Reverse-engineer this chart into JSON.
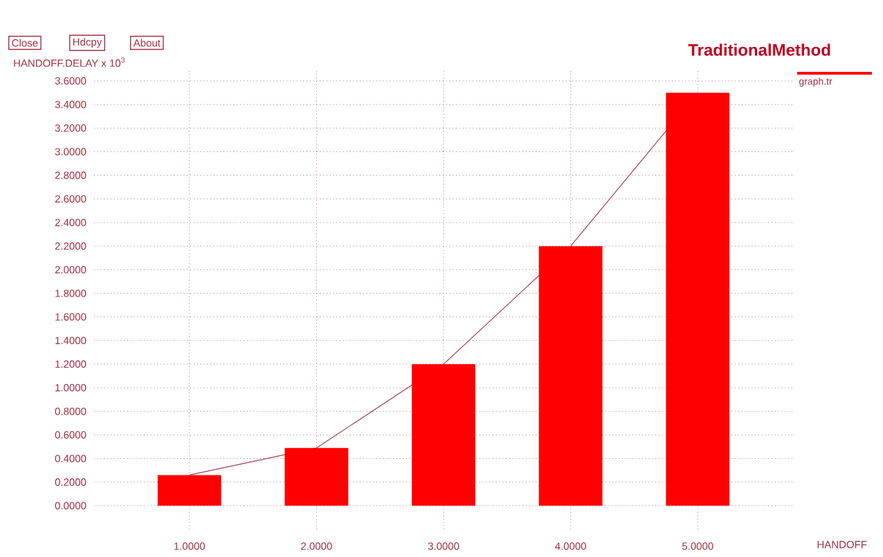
{
  "chart_data": {
    "type": "bar",
    "title": "TraditionalMethod",
    "xlabel": "HANDOFF",
    "ylabel": "HANDOFF.DELAY x 10$^{3}$",
    "x": [
      1,
      2,
      3,
      4,
      5
    ],
    "series": [
      {
        "name": "graph.tr",
        "color": "#ff0000",
        "values": [
          0.26,
          0.49,
          1.2,
          2.2,
          3.5
        ]
      },
      {
        "type": "line",
        "color": "#a04050",
        "values": [
          0.26,
          0.49,
          1.2,
          2.2,
          3.5
        ]
      }
    ],
    "xlim": [
      0.25,
      5.75
    ],
    "xticks": [
      {
        "value": 1,
        "label": "1.0000"
      },
      {
        "value": 2,
        "label": "2.0000"
      },
      {
        "value": 3,
        "label": "3.0000"
      },
      {
        "value": 4,
        "label": "4.0000"
      },
      {
        "value": 5,
        "label": "5.0000"
      }
    ],
    "ylim": [
      -0.2,
      3.7
    ],
    "yticks": [
      {
        "value": 0,
        "label": "0.0000"
      },
      {
        "value": 0.2,
        "label": "0.2000"
      },
      {
        "value": 0.4,
        "label": "0.4000"
      },
      {
        "value": 0.6,
        "label": "0.6000"
      },
      {
        "value": 0.8,
        "label": "0.8000"
      },
      {
        "value": 1,
        "label": "1.0000"
      },
      {
        "value": 1.2,
        "label": "1.2000"
      },
      {
        "value": 1.4,
        "label": "1.4000"
      },
      {
        "value": 1.6,
        "label": "1.6000"
      },
      {
        "value": 1.8,
        "label": "1.8000"
      },
      {
        "value": 2,
        "label": "2.0000"
      },
      {
        "value": 2.2,
        "label": "2.2000"
      },
      {
        "value": 2.4,
        "label": "2.4000"
      },
      {
        "value": 2.6,
        "label": "2.6000"
      },
      {
        "value": 2.8,
        "label": "2.8000"
      },
      {
        "value": 3,
        "label": "3.0000"
      },
      {
        "value": 3.2,
        "label": "3.2000"
      },
      {
        "value": 3.4,
        "label": "3.4000"
      },
      {
        "value": 3.6,
        "label": "3.6000"
      }
    ],
    "grid": true,
    "legend": "top right",
    "annotations": [
      "Close",
      "Hdcpy",
      "About"
    ]
  }
}
